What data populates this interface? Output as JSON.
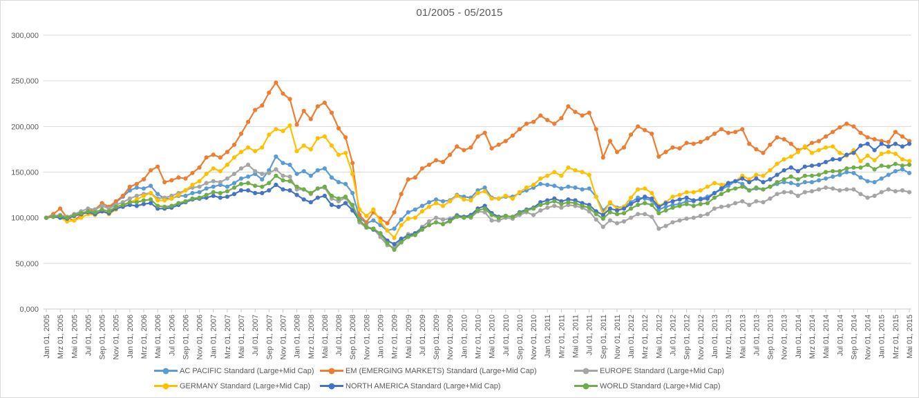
{
  "chart_data": {
    "type": "line",
    "title": "01/2005 - 05/2015",
    "x_frequency": "monthly",
    "x_start": "2005-01",
    "x_end": "2015-05",
    "grid": "horizontal",
    "legend_position": "bottom",
    "marker": "circle",
    "ylim": [
      0,
      300000
    ],
    "y_step": 50000,
    "y_tick_labels": [
      "0,000",
      "50,000",
      "100,000",
      "150,000",
      "200,000",
      "250,000",
      "300,000"
    ],
    "x_tick_every": 2,
    "x_tick_labels": [
      "Jan 01, 2005",
      "Mrz 01, 2005",
      "Mai 01, 2005",
      "Jul 01, 2005",
      "Sep 01, 2005",
      "Nov 01, 2005",
      "Jan 01, 2006",
      "Mrz 01, 2006",
      "Mai 01, 2006",
      "Jul 01, 2006",
      "Sep 01, 2006",
      "Nov 01, 2006",
      "Jan 01, 2007",
      "Mrz 01, 2007",
      "Mai 01, 2007",
      "Jul 01, 2007",
      "Sep 01, 2007",
      "Nov 01, 2007",
      "Jan 01, 2008",
      "Mrz 01, 2008",
      "Mai 01, 2008",
      "Jul 01, 2008",
      "Sep 01, 2008",
      "Nov 01, 2008",
      "Jan 01, 2009",
      "Mrz 01, 2009",
      "Mai 01, 2009",
      "Jul 01, 2009",
      "Sep 01, 2009",
      "Nov 01, 2009",
      "Jan 01, 2010",
      "Mrz 01, 2010",
      "Mai 01, 2010",
      "Jul 01, 2010",
      "Sep 01, 2010",
      "Nov 01, 2010",
      "Jan 01, 2011",
      "Mrz 01, 2011",
      "Mai 01, 2011",
      "Jul 01, 2011",
      "Sep 01, 2011",
      "Nov 01, 2011",
      "Jan 01, 2012",
      "Mrz 01, 2012",
      "Mai 01, 2012",
      "Jul 01, 2012",
      "Sep 01, 2012",
      "Nov 01, 2012",
      "Jan 01, 2013",
      "Mrz 01, 2013",
      "Mai 01, 2013",
      "Jul 01, 2013",
      "Sep 01, 2013",
      "Nov 01, 2013",
      "Jan 01, 2014",
      "Mrz 01, 2014",
      "Mai 01, 2014",
      "Jul 01, 2014",
      "Sep 01, 2014",
      "Nov 01, 2014",
      "Jan 01, 2015",
      "Mrz 01, 2015",
      "Mai 01, 2015"
    ],
    "colors": {
      "text": "#595959",
      "gridline": "#D9D9D9",
      "axis": "#C8C8C8",
      "background": "#FFFFFF",
      "border": "#D9D9D9"
    },
    "series": [
      {
        "id": "ac-pacific",
        "name": "AC PACIFIC Standard (Large+Mid Cap)",
        "color": "#5B9BD5",
        "values": [
          100000,
          101000,
          103000,
          100000,
          102000,
          105000,
          107000,
          109000,
          113000,
          111000,
          117000,
          123000,
          130000,
          133000,
          132000,
          135000,
          126000,
          121000,
          121000,
          124000,
          124000,
          127000,
          128000,
          132000,
          134000,
          136000,
          134000,
          138000,
          143000,
          145000,
          148000,
          142000,
          152000,
          167000,
          160000,
          158000,
          148000,
          151000,
          146000,
          152000,
          154000,
          144000,
          139000,
          137000,
          127000,
          100000,
          94000,
          97000,
          92000,
          86000,
          88000,
          98000,
          106000,
          109000,
          113000,
          117000,
          120000,
          118000,
          119000,
          125000,
          123000,
          122000,
          130000,
          133000,
          122000,
          121000,
          123000,
          123000,
          127000,
          130000,
          133000,
          137000,
          136000,
          135000,
          132000,
          134000,
          133000,
          131000,
          132000,
          123000,
          108000,
          116000,
          111000,
          112000,
          117000,
          122000,
          121000,
          119000,
          109000,
          112000,
          114000,
          115000,
          118000,
          118000,
          121000,
          123000,
          127000,
          131000,
          135000,
          140000,
          137000,
          130000,
          132000,
          131000,
          134000,
          137000,
          139000,
          138000,
          136000,
          139000,
          139000,
          141000,
          143000,
          145000,
          147000,
          150000,
          149000,
          144000,
          140000,
          139000,
          143000,
          147000,
          151000,
          153000,
          149000
        ]
      },
      {
        "id": "em-emerging-markets",
        "name": "EM (EMERGING MARKETS) Standard (Large+Mid Cap)",
        "color": "#ED7D31",
        "values": [
          100000,
          104000,
          110000,
          100000,
          97000,
          103000,
          107000,
          109000,
          116000,
          112000,
          118000,
          124000,
          134000,
          137000,
          142000,
          152000,
          156000,
          139000,
          141000,
          144000,
          143000,
          149000,
          155000,
          166000,
          169000,
          166000,
          172000,
          180000,
          192000,
          205000,
          218000,
          223000,
          237000,
          248000,
          236000,
          230000,
          202000,
          217000,
          208000,
          222000,
          226000,
          215000,
          198000,
          188000,
          160000,
          103000,
          95000,
          106000,
          99000,
          94000,
          106000,
          126000,
          142000,
          144000,
          154000,
          158000,
          163000,
          161000,
          169000,
          178000,
          174000,
          177000,
          189000,
          193000,
          176000,
          180000,
          184000,
          190000,
          197000,
          203000,
          205000,
          212000,
          207000,
          203000,
          209000,
          222000,
          216000,
          212000,
          215000,
          197000,
          166000,
          184000,
          172000,
          177000,
          191000,
          200000,
          196000,
          192000,
          167000,
          172000,
          177000,
          176000,
          182000,
          181000,
          183000,
          187000,
          192000,
          197000,
          193000,
          194000,
          197000,
          181000,
          175000,
          171000,
          180000,
          188000,
          186000,
          181000,
          174000,
          177000,
          182000,
          184000,
          189000,
          194000,
          199000,
          203000,
          200000,
          193000,
          188000,
          186000,
          184000,
          183000,
          194000,
          189000,
          184000
        ]
      },
      {
        "id": "europe",
        "name": "EUROPE Standard (Large+Mid Cap)",
        "color": "#A5A5A5",
        "values": [
          100000,
          102000,
          103000,
          101000,
          104000,
          107000,
          110000,
          109000,
          113000,
          110000,
          114000,
          117000,
          121000,
          124000,
          126000,
          127000,
          121000,
          122000,
          124000,
          127000,
          130000,
          133000,
          134000,
          138000,
          140000,
          139000,
          143000,
          148000,
          154000,
          158000,
          151000,
          148000,
          149000,
          153000,
          146000,
          145000,
          131000,
          131000,
          126000,
          132000,
          133000,
          121000,
          118000,
          122000,
          111000,
          95000,
          89000,
          88000,
          79000,
          70000,
          67000,
          76000,
          82000,
          83000,
          90000,
          96000,
          100000,
          98000,
          99000,
          103000,
          101000,
          100000,
          107000,
          106000,
          97000,
          97000,
          100000,
          99000,
          103000,
          106000,
          103000,
          108000,
          111000,
          113000,
          111000,
          114000,
          113000,
          111000,
          107000,
          98000,
          90000,
          97000,
          94000,
          96000,
          100000,
          104000,
          104000,
          101000,
          88000,
          91000,
          95000,
          97000,
          99000,
          100000,
          102000,
          104000,
          110000,
          112000,
          113000,
          116000,
          118000,
          114000,
          118000,
          117000,
          121000,
          126000,
          128000,
          128000,
          124000,
          128000,
          129000,
          131000,
          133000,
          132000,
          130000,
          131000,
          131000,
          126000,
          122000,
          124000,
          128000,
          131000,
          129000,
          130000,
          128000
        ]
      },
      {
        "id": "germany",
        "name": "GERMANY Standard (Large+Mid Cap)",
        "color": "#FFC000",
        "values": [
          100000,
          101000,
          100000,
          96000,
          97000,
          100000,
          104000,
          103000,
          107000,
          104000,
          109000,
          113000,
          117000,
          120000,
          124000,
          127000,
          119000,
          119000,
          121000,
          125000,
          130000,
          136000,
          140000,
          148000,
          154000,
          151000,
          158000,
          166000,
          172000,
          177000,
          173000,
          177000,
          191000,
          197000,
          195000,
          201000,
          173000,
          179000,
          175000,
          187000,
          189000,
          179000,
          169000,
          171000,
          148000,
          109000,
          102000,
          109000,
          96000,
          86000,
          78000,
          92000,
          99000,
          100000,
          107000,
          112000,
          116000,
          113000,
          118000,
          124000,
          120000,
          119000,
          127000,
          129000,
          121000,
          121000,
          124000,
          121000,
          128000,
          133000,
          136000,
          143000,
          146000,
          150000,
          146000,
          155000,
          152000,
          150000,
          147000,
          123000,
          104000,
          117000,
          110000,
          112000,
          122000,
          131000,
          132000,
          127000,
          113000,
          117000,
          123000,
          125000,
          128000,
          128000,
          130000,
          134000,
          138000,
          136000,
          138000,
          140000,
          146000,
          142000,
          147000,
          146000,
          152000,
          159000,
          164000,
          167000,
          172000,
          178000,
          171000,
          174000,
          177000,
          178000,
          171000,
          168000,
          174000,
          162000,
          168000,
          163000,
          170000,
          172000,
          170000,
          164000,
          162000
        ]
      },
      {
        "id": "north-america",
        "name": "NORTH AMERICA Standard (Large+Mid Cap)",
        "color": "#4472C4",
        "values": [
          100000,
          101000,
          100000,
          99000,
          102000,
          104000,
          106000,
          104000,
          107000,
          105000,
          110000,
          112000,
          114000,
          113000,
          115000,
          116000,
          110000,
          110000,
          111000,
          114000,
          117000,
          120000,
          121000,
          122000,
          124000,
          122000,
          123000,
          126000,
          130000,
          130000,
          127000,
          127000,
          130000,
          136000,
          131000,
          130000,
          125000,
          120000,
          117000,
          122000,
          124000,
          114000,
          112000,
          116000,
          108000,
          97000,
          90000,
          87000,
          83000,
          75000,
          71000,
          77000,
          80000,
          83000,
          88000,
          92000,
          95000,
          93000,
          97000,
          102000,
          101000,
          103000,
          110000,
          113000,
          105000,
          101000,
          102000,
          101000,
          106000,
          109000,
          111000,
          117000,
          119000,
          121000,
          118000,
          120000,
          119000,
          116000,
          114000,
          107000,
          103000,
          110000,
          108000,
          110000,
          115000,
          119000,
          123000,
          121000,
          112000,
          116000,
          118000,
          120000,
          122000,
          119000,
          120000,
          121000,
          127000,
          132000,
          138000,
          140000,
          143000,
          139000,
          143000,
          139000,
          142000,
          147000,
          152000,
          155000,
          151000,
          156000,
          157000,
          158000,
          161000,
          164000,
          164000,
          169000,
          171000,
          179000,
          181000,
          174000,
          181000,
          178000,
          181000,
          178000,
          181000
        ]
      },
      {
        "id": "world",
        "name": "WORLD Standard (Large+Mid Cap)",
        "color": "#70AD47",
        "values": [
          100000,
          101000,
          102000,
          100000,
          103000,
          105000,
          107000,
          106000,
          109000,
          107000,
          112000,
          114000,
          117000,
          117000,
          119000,
          120000,
          113000,
          112000,
          113000,
          116000,
          118000,
          121000,
          122000,
          125000,
          128000,
          127000,
          129000,
          133000,
          137000,
          138000,
          135000,
          134000,
          138000,
          146000,
          141000,
          140000,
          134000,
          131000,
          127000,
          132000,
          134000,
          124000,
          121000,
          123000,
          114000,
          97000,
          90000,
          88000,
          83000,
          72000,
          65000,
          73000,
          79000,
          81000,
          87000,
          92000,
          95000,
          93000,
          96000,
          101000,
          100000,
          101000,
          108000,
          110000,
          103000,
          100000,
          102000,
          101000,
          105000,
          108000,
          110000,
          114000,
          116000,
          118000,
          115000,
          117000,
          116000,
          113000,
          111000,
          104000,
          99000,
          106000,
          104000,
          105000,
          110000,
          114000,
          116000,
          114000,
          105000,
          108000,
          111000,
          113000,
          115000,
          113000,
          115000,
          116000,
          122000,
          126000,
          130000,
          132000,
          134000,
          130000,
          133000,
          131000,
          134000,
          139000,
          142000,
          145000,
          142000,
          146000,
          146000,
          147000,
          150000,
          151000,
          151000,
          154000,
          155000,
          155000,
          158000,
          153000,
          157000,
          156000,
          159000,
          157000,
          158000
        ]
      }
    ]
  },
  "legend": {
    "rows": [
      [
        0,
        1,
        2
      ],
      [
        3,
        4,
        5
      ]
    ]
  }
}
